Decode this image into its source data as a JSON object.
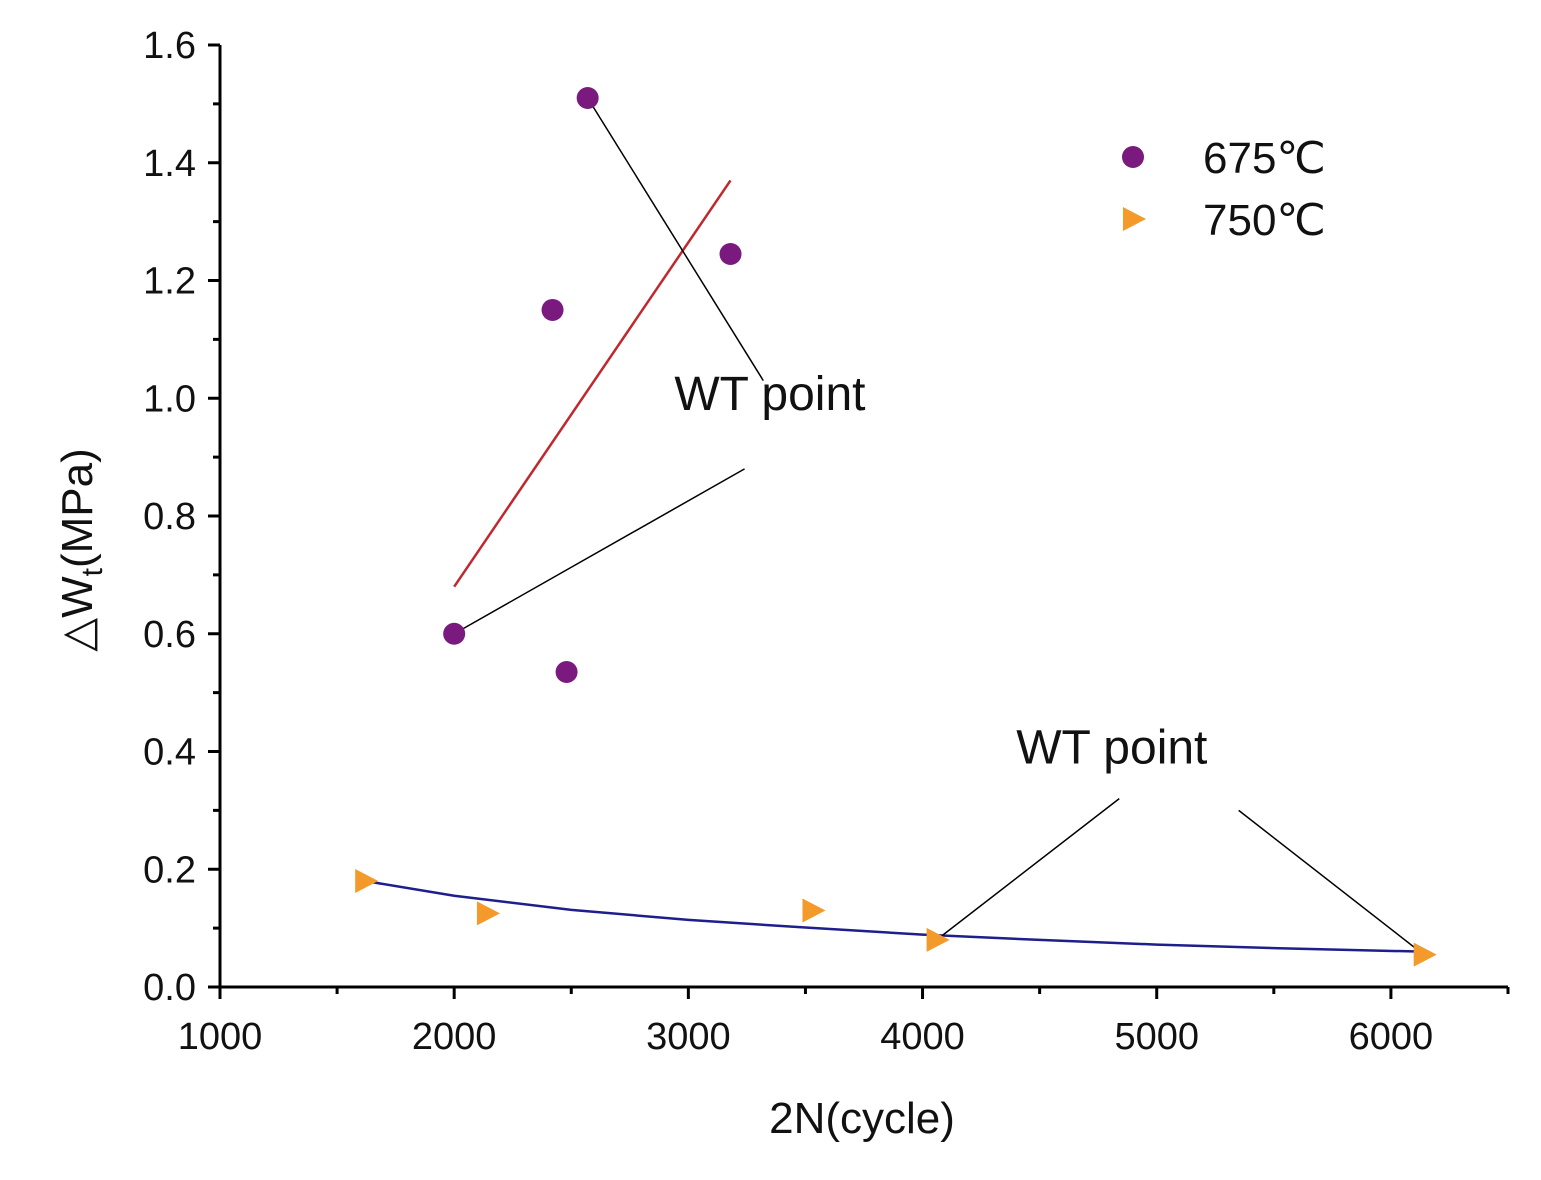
{
  "chart_data": {
    "type": "scatter",
    "title": "",
    "xlabel": "2N(cycle)",
    "ylabel_prefix": "△W",
    "ylabel_sub": "t",
    "ylabel_suffix": "(MPa)",
    "xlim": [
      1000,
      6500
    ],
    "ylim": [
      0.0,
      1.6
    ],
    "x_major_ticks": [
      1000,
      2000,
      3000,
      4000,
      5000,
      6000
    ],
    "x_tick_labels": [
      "1000",
      "2000",
      "3000",
      "4000",
      "5000",
      "6000"
    ],
    "y_major_ticks": [
      0.0,
      0.2,
      0.4,
      0.6,
      0.8,
      1.0,
      1.2,
      1.4,
      1.6
    ],
    "y_tick_labels": [
      "0.0",
      "0.2",
      "0.4",
      "0.6",
      "0.8",
      "1.0",
      "1.2",
      "1.4",
      "1.6"
    ],
    "grid": false,
    "legend_position": "top-right",
    "series": [
      {
        "name": "675℃",
        "marker": "circle",
        "color": "#7B1A7E",
        "points": [
          [
            2000,
            0.6
          ],
          [
            2420,
            1.15
          ],
          [
            2480,
            0.535
          ],
          [
            2570,
            1.51
          ],
          [
            3180,
            1.245
          ]
        ],
        "fit": {
          "type": "linear",
          "color": "#C0282D",
          "points": [
            [
              2000,
              0.68
            ],
            [
              3180,
              1.37
            ]
          ]
        }
      },
      {
        "name": "750℃",
        "marker": "triangle-right",
        "color": "#F39A2B",
        "points": [
          [
            1620,
            0.18
          ],
          [
            2140,
            0.125
          ],
          [
            3530,
            0.13
          ],
          [
            4060,
            0.08
          ],
          [
            6140,
            0.055
          ]
        ],
        "fit": {
          "type": "power",
          "color": "#1E1E8C",
          "points": [
            [
              1620,
              0.18
            ],
            [
              2000,
              0.155
            ],
            [
              2500,
              0.131
            ],
            [
              3000,
              0.114
            ],
            [
              3500,
              0.101
            ],
            [
              4000,
              0.089
            ],
            [
              4500,
              0.08
            ],
            [
              5000,
              0.072
            ],
            [
              5500,
              0.066
            ],
            [
              6140,
              0.06
            ]
          ]
        }
      }
    ],
    "annotations": [
      {
        "text": "WT point",
        "anchor": [
          2940,
          0.98
        ],
        "leaders": [
          {
            "from": [
              3320,
              1.03
            ],
            "to": [
              2570,
              1.51
            ]
          },
          {
            "from": [
              3240,
              0.88
            ],
            "to": [
              2000,
              0.6
            ]
          }
        ]
      },
      {
        "text": "WT point",
        "anchor": [
          4400,
          0.38
        ],
        "leaders": [
          {
            "from": [
              4840,
              0.32
            ],
            "to": [
              4060,
              0.08
            ]
          },
          {
            "from": [
              5350,
              0.3
            ],
            "to": [
              6140,
              0.055
            ]
          }
        ]
      }
    ]
  }
}
